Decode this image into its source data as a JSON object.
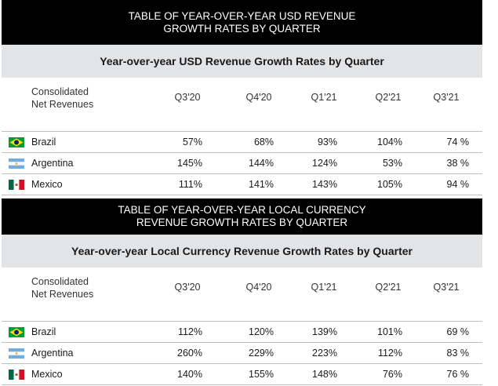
{
  "usd": {
    "black_title_line1": "TABLE OF YEAR-OVER-YEAR USD REVENUE",
    "black_title_line2": "GROWTH RATES BY QUARTER",
    "subtitle": "Year-over-year USD Revenue Growth Rates by Quarter",
    "header_label_line1": "Consolidated",
    "header_label_line2": "Net Revenues",
    "quarters": [
      "Q3'20",
      "Q4'20",
      "Q1'21",
      "Q2'21",
      "Q3'21"
    ],
    "rows": [
      {
        "country": "Brazil",
        "flag": "brazil-flag-icon",
        "values": [
          "57%",
          "68%",
          "93%",
          "104%",
          "74 %"
        ]
      },
      {
        "country": "Argentina",
        "flag": "argentina-flag-icon",
        "values": [
          "145%",
          "144%",
          "124%",
          "53%",
          "38 %"
        ]
      },
      {
        "country": "Mexico",
        "flag": "mexico-flag-icon",
        "values": [
          "111%",
          "141%",
          "143%",
          "105%",
          "94 %"
        ]
      }
    ]
  },
  "local": {
    "black_title_line1": "TABLE OF YEAR-OVER-YEAR LOCAL CURRENCY",
    "black_title_line2": "REVENUE GROWTH RATES BY QUARTER",
    "subtitle": "Year-over-year Local Currency Revenue Growth Rates by Quarter",
    "header_label_line1": "Consolidated",
    "header_label_line2": "Net Revenues",
    "quarters": [
      "Q3'20",
      "Q4'20",
      "Q1'21",
      "Q2'21",
      "Q3'21"
    ],
    "rows": [
      {
        "country": "Brazil",
        "flag": "brazil-flag-icon",
        "values": [
          "112%",
          "120%",
          "139%",
          "101%",
          "69 %"
        ]
      },
      {
        "country": "Argentina",
        "flag": "argentina-flag-icon",
        "values": [
          "260%",
          "229%",
          "223%",
          "112%",
          "83 %"
        ]
      },
      {
        "country": "Mexico",
        "flag": "mexico-flag-icon",
        "values": [
          "140%",
          "155%",
          "148%",
          "76%",
          "76 %"
        ]
      }
    ]
  },
  "colors": {
    "title_bg": "#000000",
    "band_bg": "#e3e4e6",
    "brazil_green": "#009b3a",
    "brazil_yellow": "#fedf00",
    "brazil_blue": "#002776",
    "argentina_blue": "#74acdf",
    "mexico_green": "#006847",
    "mexico_red": "#ce1126"
  }
}
